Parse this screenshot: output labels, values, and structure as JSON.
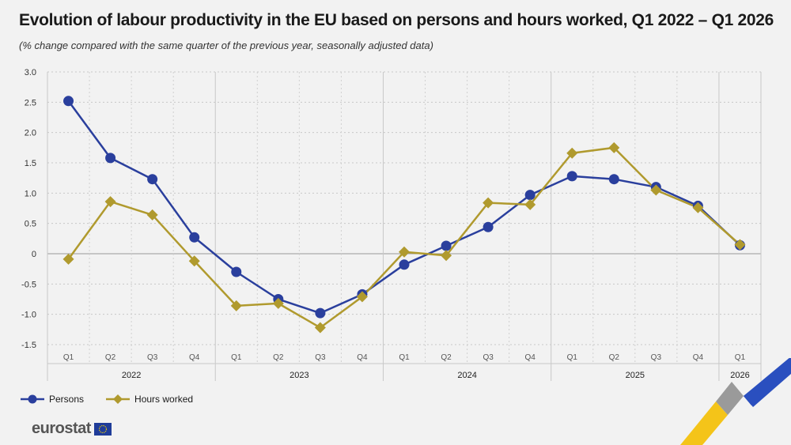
{
  "header": {
    "title": "Evolution of labour productivity in the EU based on persons and hours worked, Q1 2022 – Q1 2026",
    "subtitle": "(% change compared with the same quarter of the previous year, seasonally adjusted data)"
  },
  "legend": {
    "persons_label": "Persons",
    "hours_label": "Hours worked"
  },
  "branding": {
    "logo_text": "eurostat"
  },
  "colors": {
    "persons": "#2a3f9d",
    "hours": "#b09a2e",
    "background": "#f2f2f2"
  },
  "chart_data": {
    "type": "line",
    "title": "Evolution of labour productivity in the EU based on persons and hours worked, Q1 2022 – Q1 2026",
    "subtitle": "(% change compared with the same quarter of the previous year, seasonally adjusted data)",
    "categories": [
      "Q1",
      "Q2",
      "Q3",
      "Q4",
      "Q1",
      "Q2",
      "Q3",
      "Q4",
      "Q1",
      "Q2",
      "Q3",
      "Q4",
      "Q1",
      "Q2",
      "Q3",
      "Q4",
      "Q1"
    ],
    "years": [
      {
        "label": "2022",
        "count": 4
      },
      {
        "label": "2023",
        "count": 4
      },
      {
        "label": "2024",
        "count": 4
      },
      {
        "label": "2025",
        "count": 4
      },
      {
        "label": "2026",
        "count": 1
      }
    ],
    "yticks": [
      "3.0",
      "2.5",
      "2.0",
      "1.5",
      "1.0",
      "0.5",
      "0",
      "-0.5",
      "-1.0",
      "-1.5"
    ],
    "ylim": [
      -1.5,
      3.0
    ],
    "grid": true,
    "legend_position": "bottom-left",
    "series": [
      {
        "name": "Persons",
        "marker": "circle",
        "values": [
          2.52,
          1.58,
          1.23,
          0.27,
          -0.3,
          -0.75,
          -0.98,
          -0.67,
          -0.18,
          0.13,
          0.44,
          0.97,
          1.28,
          1.23,
          1.1,
          0.79,
          0.14
        ]
      },
      {
        "name": "Hours worked",
        "marker": "diamond",
        "values": [
          -0.09,
          0.86,
          0.64,
          -0.12,
          -0.86,
          -0.82,
          -1.22,
          -0.71,
          0.03,
          -0.03,
          0.84,
          0.81,
          1.66,
          1.75,
          1.05,
          0.76,
          0.15
        ]
      }
    ]
  }
}
